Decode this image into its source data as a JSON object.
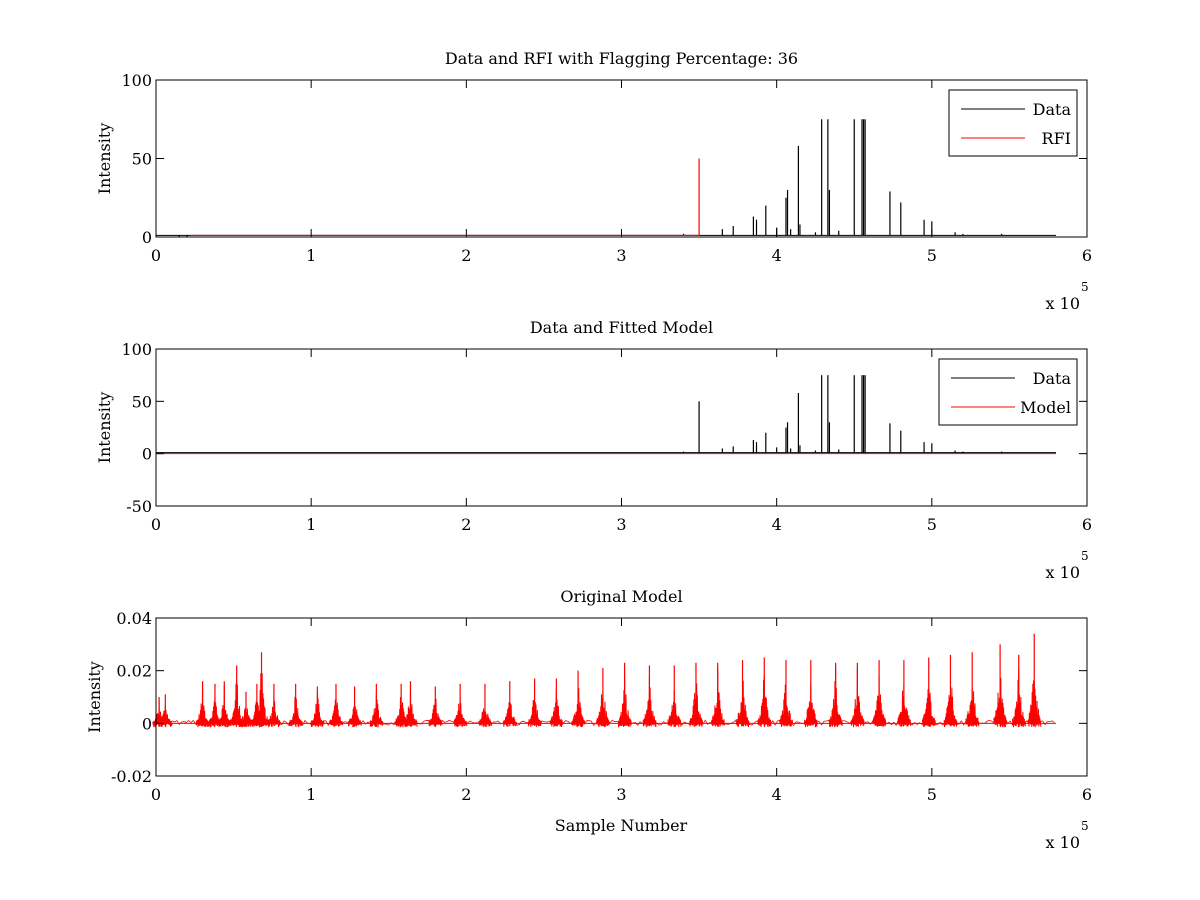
{
  "chart_data": [
    {
      "type": "line",
      "title": "Data and RFI with Flagging Percentage: 36",
      "xlabel": "",
      "ylabel": "Intensity",
      "xlim": [
        0,
        600000
      ],
      "ylim": [
        0,
        100
      ],
      "xticks": [
        "0",
        "1",
        "2",
        "3",
        "4",
        "5",
        "6"
      ],
      "xtick_values": [
        0,
        100000,
        200000,
        300000,
        400000,
        500000,
        600000
      ],
      "yticks": [
        "0",
        "50",
        "100"
      ],
      "ytick_values": [
        0,
        50,
        100
      ],
      "x_multiplier": {
        "base": "x 10",
        "exponent": "5"
      },
      "grid": false,
      "legend": {
        "placement": "top-right",
        "entries": [
          {
            "label": "Data",
            "color": "#000000"
          },
          {
            "label": "RFI",
            "color": "#ff0000"
          }
        ]
      },
      "series": [
        {
          "name": "Data",
          "color": "#000000",
          "style": "spikes",
          "baseline": 1,
          "range": [
            0,
            580000
          ],
          "x": [
            15000,
            20000,
            340000,
            365000,
            372000,
            385000,
            387000,
            393000,
            400000,
            406000,
            407000,
            409000,
            414000,
            415000,
            425000,
            429000,
            433000,
            434000,
            440000,
            450000,
            455000,
            456000,
            457000,
            473000,
            480000,
            495000,
            500000,
            515000,
            520000,
            540000,
            545000
          ],
          "y": [
            0,
            0,
            2,
            5,
            7,
            13,
            11,
            20,
            6,
            25,
            30,
            5,
            58,
            8,
            3,
            75,
            75,
            30,
            4,
            75,
            75,
            75,
            75,
            29,
            22,
            11,
            10,
            3,
            2,
            1,
            2
          ]
        },
        {
          "name": "RFI",
          "color": "#ff0000",
          "style": "spikes",
          "baseline": 1,
          "range": [
            22000,
            350000
          ],
          "x": [
            350000
          ],
          "y": [
            50
          ]
        }
      ]
    },
    {
      "type": "line",
      "title": "Data and Fitted Model",
      "xlabel": "",
      "ylabel": "Intensity",
      "xlim": [
        0,
        600000
      ],
      "ylim": [
        -50,
        100
      ],
      "xticks": [
        "0",
        "1",
        "2",
        "3",
        "4",
        "5",
        "6"
      ],
      "xtick_values": [
        0,
        100000,
        200000,
        300000,
        400000,
        500000,
        600000
      ],
      "yticks": [
        "-50",
        "0",
        "50",
        "100"
      ],
      "ytick_values": [
        -50,
        0,
        50,
        100
      ],
      "x_multiplier": {
        "base": "x 10",
        "exponent": "5"
      },
      "grid": false,
      "legend": {
        "placement": "top-right",
        "entries": [
          {
            "label": "Data",
            "color": "#000000"
          },
          {
            "label": "Model",
            "color": "#ff0000"
          }
        ]
      },
      "series": [
        {
          "name": "Data",
          "color": "#000000",
          "style": "spikes",
          "baseline": 1,
          "range": [
            0,
            580000
          ],
          "x": [
            340000,
            350000,
            365000,
            372000,
            385000,
            387000,
            393000,
            400000,
            406000,
            407000,
            409000,
            414000,
            415000,
            425000,
            429000,
            433000,
            434000,
            440000,
            450000,
            455000,
            456000,
            457000,
            473000,
            480000,
            495000,
            500000,
            515000,
            520000,
            540000,
            545000
          ],
          "y": [
            2,
            50,
            5,
            7,
            13,
            11,
            20,
            6,
            25,
            30,
            5,
            58,
            8,
            3,
            75,
            75,
            30,
            4,
            75,
            75,
            75,
            75,
            29,
            22,
            11,
            10,
            3,
            2,
            1,
            2
          ]
        },
        {
          "name": "Model",
          "color": "#ff0000",
          "style": "spikes",
          "baseline": 0,
          "range": [
            0,
            580000
          ],
          "x": [],
          "y": []
        }
      ]
    },
    {
      "type": "line",
      "title": "Original Model",
      "xlabel": "Sample Number",
      "ylabel": "Intensity",
      "xlim": [
        0,
        600000
      ],
      "ylim": [
        -0.02,
        0.04
      ],
      "xticks": [
        "0",
        "1",
        "2",
        "3",
        "4",
        "5",
        "6"
      ],
      "xtick_values": [
        0,
        100000,
        200000,
        300000,
        400000,
        500000,
        600000
      ],
      "yticks": [
        "-0.02",
        "0",
        "0.02",
        "0.04"
      ],
      "ytick_values": [
        -0.02,
        0,
        0.02,
        0.04
      ],
      "x_multiplier": {
        "base": "x 10",
        "exponent": "5"
      },
      "grid": false,
      "series": [
        {
          "color": "#ff0000",
          "style": "pulse-train",
          "baseline": 0,
          "range": [
            0,
            580000
          ],
          "x": [
            2000,
            6000,
            30000,
            38000,
            44000,
            52000,
            58000,
            65000,
            68000,
            76000,
            90000,
            104000,
            116000,
            128000,
            142000,
            158000,
            164000,
            180000,
            196000,
            212000,
            228000,
            244000,
            258000,
            272000,
            288000,
            302000,
            318000,
            334000,
            348000,
            362000,
            378000,
            392000,
            406000,
            422000,
            438000,
            452000,
            466000,
            482000,
            498000,
            512000,
            526000,
            544000,
            556000,
            566000
          ],
          "y": [
            0.01,
            0.011,
            0.016,
            0.015,
            0.016,
            0.022,
            0.012,
            0.015,
            0.027,
            0.015,
            0.015,
            0.014,
            0.015,
            0.014,
            0.015,
            0.015,
            0.016,
            0.014,
            0.015,
            0.015,
            0.016,
            0.017,
            0.017,
            0.02,
            0.021,
            0.023,
            0.022,
            0.022,
            0.023,
            0.023,
            0.024,
            0.025,
            0.024,
            0.024,
            0.023,
            0.023,
            0.024,
            0.024,
            0.025,
            0.026,
            0.027,
            0.03,
            0.026,
            0.034
          ]
        }
      ]
    }
  ]
}
